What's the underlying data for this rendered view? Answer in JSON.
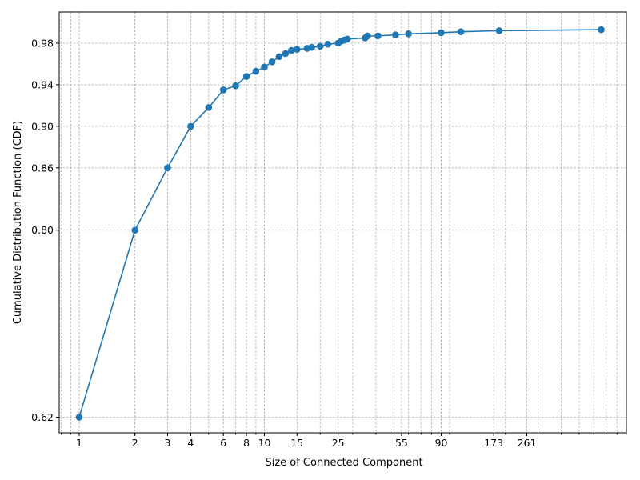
{
  "chart_data": {
    "type": "line",
    "xlabel": "Size of Connected Component",
    "ylabel": "Cumulative Distribution Function (CDF)",
    "x_scale": "log",
    "xlim": [
      0.78,
      900
    ],
    "ylim": [
      0.605,
      1.01
    ],
    "grid": true,
    "marker": "circle",
    "series_color": "#1f77b4",
    "x_ticks": [
      {
        "value": 1,
        "label": "1"
      },
      {
        "value": 2,
        "label": "2"
      },
      {
        "value": 3,
        "label": "3"
      },
      {
        "value": 4,
        "label": "4"
      },
      {
        "value": 6,
        "label": "6"
      },
      {
        "value": 8,
        "label": "8"
      },
      {
        "value": 10,
        "label": "10"
      },
      {
        "value": 15,
        "label": "15"
      },
      {
        "value": 25,
        "label": "25"
      },
      {
        "value": 55,
        "label": "55"
      },
      {
        "value": 90,
        "label": "90"
      },
      {
        "value": 173,
        "label": "173"
      },
      {
        "value": 261,
        "label": "261"
      }
    ],
    "y_ticks": [
      {
        "value": 0.62,
        "label": "0.62"
      },
      {
        "value": 0.8,
        "label": "0.80"
      },
      {
        "value": 0.86,
        "label": "0.86"
      },
      {
        "value": 0.9,
        "label": "0.90"
      },
      {
        "value": 0.94,
        "label": "0.94"
      },
      {
        "value": 0.98,
        "label": "0.98"
      }
    ],
    "series": [
      {
        "x": [
          1,
          2,
          3,
          4,
          5,
          6,
          7,
          8,
          9,
          10,
          11,
          12,
          13,
          14,
          15,
          17,
          18,
          20,
          22,
          25,
          26,
          27,
          28,
          35,
          36,
          41,
          51,
          60,
          90,
          115,
          185,
          658
        ],
        "y": [
          0.62,
          0.8,
          0.86,
          0.9,
          0.918,
          0.935,
          0.939,
          0.948,
          0.953,
          0.957,
          0.962,
          0.967,
          0.97,
          0.973,
          0.974,
          0.975,
          0.976,
          0.977,
          0.979,
          0.98,
          0.982,
          0.983,
          0.984,
          0.985,
          0.987,
          0.987,
          0.988,
          0.989,
          0.99,
          0.991,
          0.992,
          0.993
        ]
      }
    ]
  }
}
